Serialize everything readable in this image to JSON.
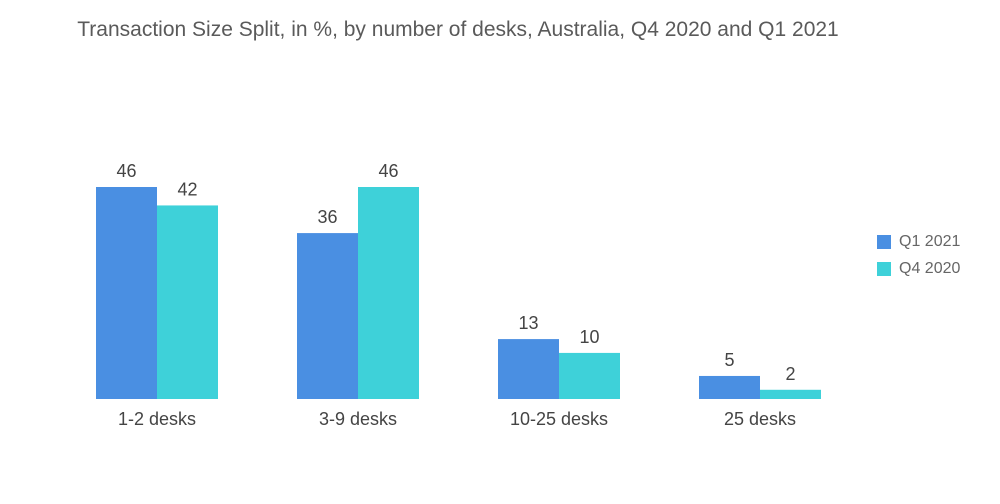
{
  "chart_data": {
    "type": "bar",
    "title": "Transaction Size Split, in %, by number of desks, Australia, Q4 2020 and Q1 2021",
    "categories": [
      "1-2 desks",
      "3-9 desks",
      "10-25 desks",
      "25 desks"
    ],
    "series": [
      {
        "name": "Q1 2021",
        "values": [
          46,
          36,
          13,
          5
        ],
        "color": "#4a8fe2"
      },
      {
        "name": "Q4 2020",
        "values": [
          42,
          46,
          10,
          2
        ],
        "color": "#3ed1d9"
      }
    ],
    "ylim": [
      0,
      46
    ],
    "grid": false,
    "legend_position": "right",
    "data_labels": true
  }
}
